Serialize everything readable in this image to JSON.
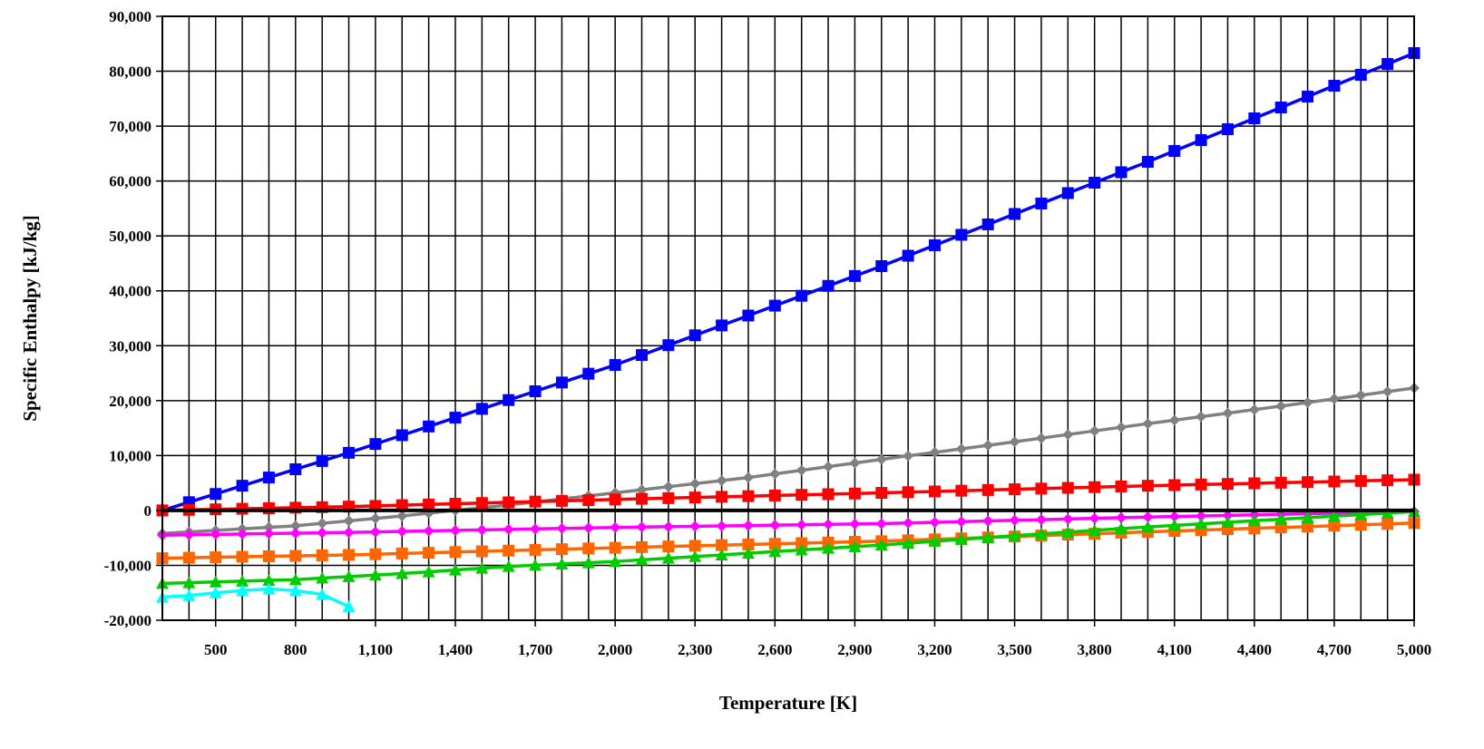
{
  "chart_data": {
    "type": "line",
    "title": "",
    "xlabel": "Temperature [K]",
    "ylabel": "Specific Enthalpy [kJ/kg]",
    "xlim": [
      300,
      5000
    ],
    "ylim": [
      -20000,
      90000
    ],
    "x_ticks": [
      500,
      800,
      1100,
      1400,
      1700,
      2000,
      2300,
      2600,
      2900,
      3200,
      3500,
      3800,
      4100,
      4400,
      4700,
      5000
    ],
    "x_tick_labels": [
      "500",
      "800",
      "1,100",
      "1,400",
      "1,700",
      "2,000",
      "2,300",
      "2,600",
      "2,900",
      "3,200",
      "3,500",
      "3,800",
      "4,100",
      "4,400",
      "4,700",
      "5,000"
    ],
    "y_ticks": [
      -20000,
      -10000,
      0,
      10000,
      20000,
      30000,
      40000,
      50000,
      60000,
      70000,
      80000,
      90000
    ],
    "y_tick_labels": [
      "-20,000",
      "-10,000",
      "0",
      "10,000",
      "20,000",
      "30,000",
      "40,000",
      "50,000",
      "60,000",
      "70,000",
      "80,000",
      "90,000"
    ],
    "grid": true,
    "legend": "none",
    "series": [
      {
        "color": "#0000FF",
        "marker": "square",
        "x": [
          300,
          1000,
          2000,
          3000,
          4000,
          5000
        ],
        "y": [
          0,
          10500,
          26500,
          44500,
          63500,
          83300
        ]
      },
      {
        "color": "#808080",
        "marker": "diamond",
        "x": [
          300,
          800,
          1200,
          1600,
          2000,
          2500,
          3000,
          3500,
          4000,
          4500,
          5000
        ],
        "y": [
          -4200,
          -2800,
          -1000,
          1000,
          3200,
          6000,
          9300,
          12500,
          15800,
          19000,
          22300
        ]
      },
      {
        "color": "#FF0000",
        "marker": "square",
        "x": [
          300,
          1000,
          2000,
          3000,
          4000,
          5000
        ],
        "y": [
          0,
          700,
          2000,
          3200,
          4500,
          5600
        ]
      },
      {
        "color": "#FF00FF",
        "marker": "diamond",
        "x": [
          300,
          1000,
          2000,
          3000,
          4000,
          5000
        ],
        "y": [
          -4500,
          -4000,
          -3100,
          -2400,
          -1200,
          -200
        ]
      },
      {
        "color": "#FF6600",
        "marker": "square",
        "x": [
          300,
          1000,
          2000,
          3000,
          4000,
          5000
        ],
        "y": [
          -8700,
          -8100,
          -6800,
          -5600,
          -3900,
          -2300
        ]
      },
      {
        "color": "#00CC00",
        "marker": "triangle",
        "x": [
          300,
          800,
          1200,
          1600,
          2000,
          2500,
          3000,
          3500,
          4000,
          4500,
          5000
        ],
        "y": [
          -13300,
          -12600,
          -11500,
          -10200,
          -9300,
          -7800,
          -6300,
          -4600,
          -3000,
          -1600,
          -200
        ]
      },
      {
        "color": "#00FFFF",
        "marker": "triangle",
        "x": [
          300,
          400,
          500,
          600,
          700,
          800,
          900,
          1000
        ],
        "y": [
          -15800,
          -15500,
          -15000,
          -14600,
          -14300,
          -14600,
          -15300,
          -17500
        ]
      }
    ]
  }
}
